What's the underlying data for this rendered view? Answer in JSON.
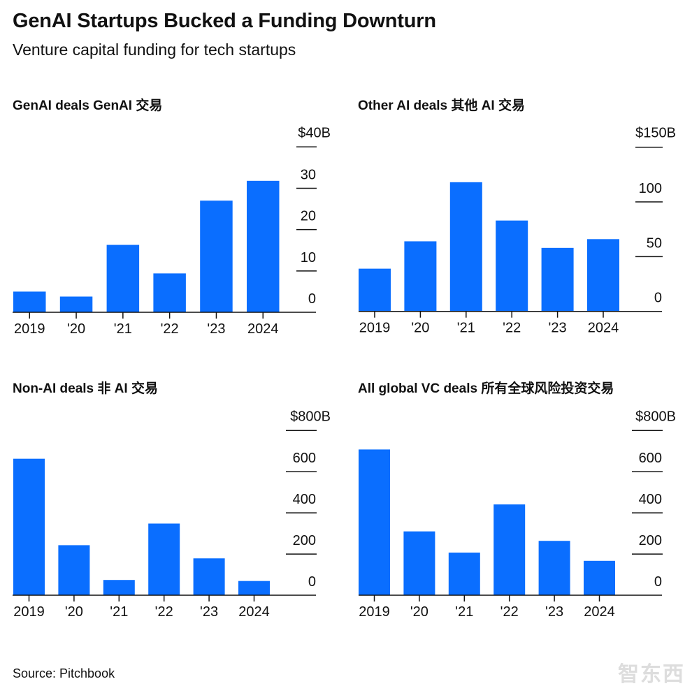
{
  "title": "GenAI Startups Bucked a Funding Downturn",
  "subtitle": "Venture capital funding for tech startups",
  "source": "Source: Pitchbook",
  "watermark": "智东西",
  "colors": {
    "bar": "#0a6eff",
    "axis": "#111111"
  },
  "chart_data": [
    {
      "type": "bar",
      "title": "GenAI deals GenAI 交易",
      "categories": [
        "2019",
        "'20",
        "'21",
        "'22",
        "'23",
        "2024"
      ],
      "values": [
        5,
        3.8,
        16.3,
        9.4,
        27,
        31.8
      ],
      "ylim": [
        0,
        40
      ],
      "yticks": [
        "0",
        "10",
        "20",
        "30",
        "$40B"
      ],
      "grid": false
    },
    {
      "type": "bar",
      "title": "Other AI deals  其他 AI 交易",
      "categories": [
        "2019",
        "'20",
        "'21",
        "'22",
        "'23",
        "2024"
      ],
      "values": [
        39,
        64,
        118,
        83,
        58,
        66
      ],
      "ylim": [
        0,
        150
      ],
      "yticks": [
        "0",
        "50",
        "100",
        "$150B"
      ],
      "grid": false
    },
    {
      "type": "bar",
      "title": "Non-AI deals 非 AI 交易",
      "categories": [
        "2019",
        "'20",
        "'21",
        "'22",
        "'23",
        "2024"
      ],
      "values": [
        663,
        243,
        74,
        348,
        179,
        69
      ],
      "ylim": [
        0,
        800
      ],
      "yticks": [
        "0",
        "200",
        "400",
        "600",
        "$800B"
      ],
      "grid": false
    },
    {
      "type": "bar",
      "title": "All global VC deals 所有全球风险投资交易",
      "categories": [
        "2019",
        "'20",
        "'21",
        "'22",
        "'23",
        "2024"
      ],
      "values": [
        708,
        310,
        207,
        441,
        264,
        167
      ],
      "ylim": [
        0,
        800
      ],
      "yticks": [
        "0",
        "200",
        "400",
        "600",
        "$800B"
      ],
      "grid": false
    }
  ]
}
